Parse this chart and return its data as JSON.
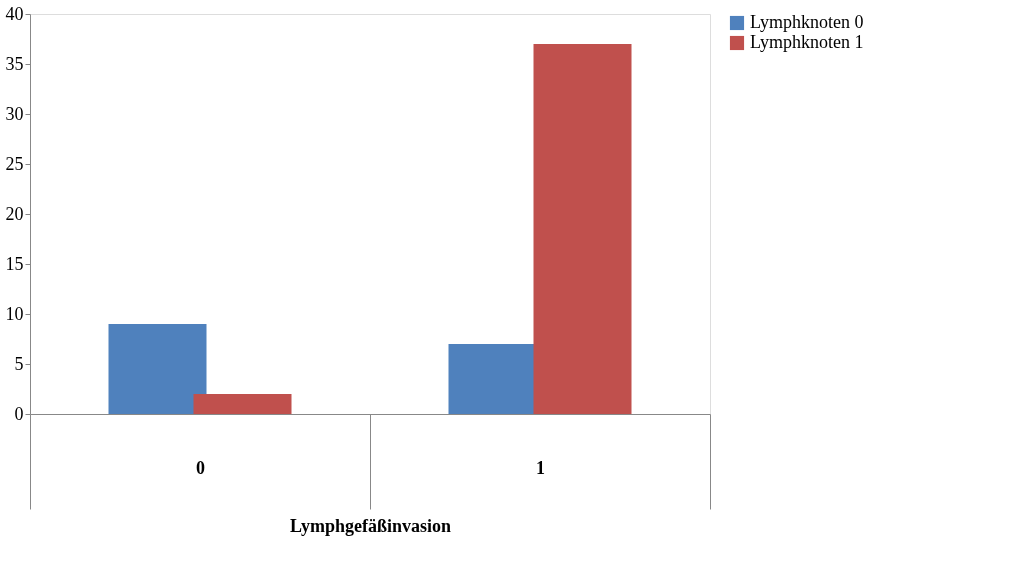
{
  "chart_data": {
    "type": "bar",
    "xlabel": "Lymphgefäßinvasion",
    "categories": [
      "0",
      "1"
    ],
    "series": [
      {
        "name": "Lymphknoten    0",
        "color": "#4f81bd",
        "values": [
          9,
          7
        ]
      },
      {
        "name": "Lymphknoten    1",
        "color": "#c0504d",
        "values": [
          2,
          37
        ]
      }
    ],
    "ylim": [
      0,
      40
    ],
    "yticks": [
      0,
      5,
      10,
      15,
      20,
      25,
      30,
      35,
      40
    ],
    "grid": false,
    "legend": "right"
  }
}
